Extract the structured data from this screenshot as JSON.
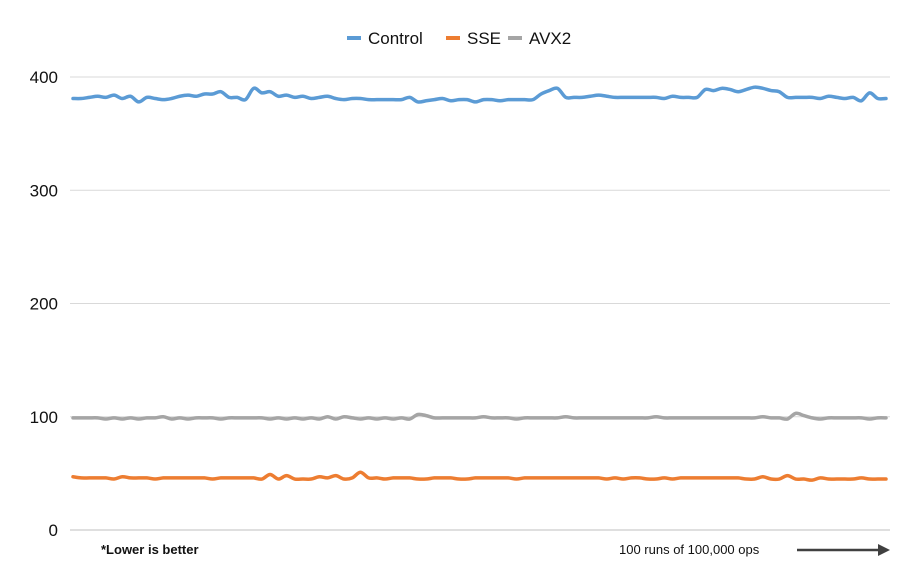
{
  "chart_data": {
    "type": "line",
    "title": "",
    "xlabel": "100 runs of 100,000 ops",
    "ylabel": "",
    "note": "*Lower is better",
    "ylim": [
      0,
      400
    ],
    "yticks": [
      "0",
      "100",
      "200",
      "300",
      "400"
    ],
    "ytick_values": [
      0,
      100,
      200,
      300,
      400
    ],
    "grid": "horizontal",
    "legend_placement": "top-center",
    "x": [
      1,
      2,
      3,
      4,
      5,
      6,
      7,
      8,
      9,
      10,
      11,
      12,
      13,
      14,
      15,
      16,
      17,
      18,
      19,
      20,
      21,
      22,
      23,
      24,
      25,
      26,
      27,
      28,
      29,
      30,
      31,
      32,
      33,
      34,
      35,
      36,
      37,
      38,
      39,
      40,
      41,
      42,
      43,
      44,
      45,
      46,
      47,
      48,
      49,
      50,
      51,
      52,
      53,
      54,
      55,
      56,
      57,
      58,
      59,
      60,
      61,
      62,
      63,
      64,
      65,
      66,
      67,
      68,
      69,
      70,
      71,
      72,
      73,
      74,
      75,
      76,
      77,
      78,
      79,
      80,
      81,
      82,
      83,
      84,
      85,
      86,
      87,
      88,
      89,
      90,
      91,
      92,
      93,
      94,
      95,
      96,
      97,
      98,
      99,
      100
    ],
    "series": [
      {
        "name": "Control",
        "color": "#5b9bd5",
        "values": [
          381,
          381,
          382,
          383,
          382,
          384,
          381,
          383,
          378,
          382,
          381,
          380,
          381,
          383,
          384,
          383,
          385,
          385,
          387,
          382,
          382,
          380,
          390,
          386,
          387,
          383,
          384,
          382,
          383,
          381,
          382,
          383,
          381,
          380,
          381,
          381,
          380,
          380,
          380,
          380,
          380,
          382,
          378,
          379,
          380,
          381,
          379,
          380,
          380,
          378,
          380,
          380,
          379,
          380,
          380,
          380,
          380,
          385,
          388,
          390,
          382,
          382,
          382,
          383,
          384,
          383,
          382,
          382,
          382,
          382,
          382,
          382,
          381,
          383,
          382,
          382,
          382,
          389,
          388,
          390,
          389,
          387,
          389,
          391,
          390,
          388,
          387,
          382,
          382,
          382,
          382,
          381,
          383,
          382,
          381,
          382,
          379,
          386,
          381,
          381
        ]
      },
      {
        "name": "SSE",
        "color": "#ed7d31",
        "values": [
          47,
          46,
          46,
          46,
          46,
          45,
          47,
          46,
          46,
          46,
          45,
          46,
          46,
          46,
          46,
          46,
          46,
          45,
          46,
          46,
          46,
          46,
          46,
          45,
          49,
          45,
          48,
          45,
          45,
          45,
          47,
          46,
          48,
          45,
          46,
          51,
          46,
          46,
          45,
          46,
          46,
          46,
          45,
          45,
          46,
          46,
          46,
          45,
          45,
          46,
          46,
          46,
          46,
          46,
          45,
          46,
          46,
          46,
          46,
          46,
          46,
          46,
          46,
          46,
          46,
          45,
          46,
          45,
          46,
          46,
          45,
          45,
          46,
          45,
          46,
          46,
          46,
          46,
          46,
          46,
          46,
          46,
          45,
          45,
          47,
          45,
          45,
          48,
          45,
          45,
          44,
          46,
          45,
          45,
          45,
          45,
          46,
          45,
          45,
          45
        ]
      },
      {
        "name": "AVX2",
        "color": "#a5a5a5",
        "values": [
          99,
          99,
          99,
          99,
          98,
          99,
          98,
          99,
          98,
          99,
          99,
          100,
          98,
          99,
          98,
          99,
          99,
          99,
          98,
          99,
          99,
          99,
          99,
          99,
          98,
          99,
          98,
          99,
          98,
          99,
          98,
          100,
          98,
          100,
          99,
          98,
          99,
          98,
          99,
          98,
          99,
          98,
          102,
          101,
          99,
          99,
          99,
          99,
          99,
          99,
          100,
          99,
          99,
          99,
          98,
          99,
          99,
          99,
          99,
          99,
          100,
          99,
          99,
          99,
          99,
          99,
          99,
          99,
          99,
          99,
          99,
          100,
          99,
          99,
          99,
          99,
          99,
          99,
          99,
          99,
          99,
          99,
          99,
          99,
          100,
          99,
          99,
          98,
          103,
          101,
          99,
          98,
          99,
          99,
          99,
          99,
          99,
          98,
          99,
          99
        ]
      }
    ]
  }
}
